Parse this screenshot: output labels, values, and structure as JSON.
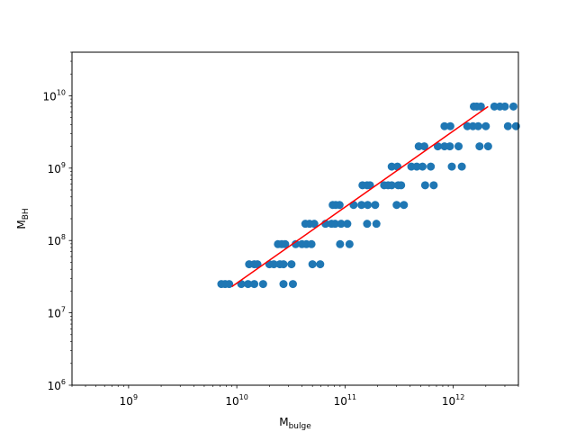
{
  "chart_data": {
    "type": "scatter",
    "title": "",
    "xlabel": {
      "base": "M",
      "sub": "bulge"
    },
    "ylabel": {
      "base": "M",
      "sub": "BH"
    },
    "xscale": "log",
    "yscale": "log",
    "xlim": [
      300000000,
      4000000000000
    ],
    "ylim": [
      1000000,
      40000000000
    ],
    "grid": false,
    "xticks": [
      {
        "base": "10",
        "exp": "9",
        "value": 1000000000.0
      },
      {
        "base": "10",
        "exp": "10",
        "value": 10000000000.0
      },
      {
        "base": "10",
        "exp": "11",
        "value": 100000000000.0
      },
      {
        "base": "10",
        "exp": "12",
        "value": 1000000000000.0
      }
    ],
    "yticks": [
      {
        "base": "10",
        "exp": "6",
        "value": 1000000.0
      },
      {
        "base": "10",
        "exp": "7",
        "value": 10000000.0
      },
      {
        "base": "10",
        "exp": "8",
        "value": 100000000.0
      },
      {
        "base": "10",
        "exp": "9",
        "value": 1000000000.0
      },
      {
        "base": "10",
        "exp": "10",
        "value": 10000000000.0
      }
    ],
    "colors": {
      "points": "#1f77b4",
      "fit": "#ff0000"
    },
    "series": [
      {
        "type": "scatter",
        "points": [
          [
            7200000000.0,
            25000000.0
          ],
          [
            7800000000.0,
            25000000.0
          ],
          [
            8500000000.0,
            25000000.0
          ],
          [
            11000000000.0,
            25000000.0
          ],
          [
            12700000000.0,
            25000000.0
          ],
          [
            14500000000.0,
            25000000.0
          ],
          [
            17500000000.0,
            25000000.0
          ],
          [
            27000000000.0,
            25000000.0
          ],
          [
            33000000000.0,
            25000000.0
          ],
          [
            13000000000.0,
            47000000.0
          ],
          [
            14500000000.0,
            47000000.0
          ],
          [
            15500000000.0,
            47000000.0
          ],
          [
            20000000000.0,
            47000000.0
          ],
          [
            22000000000.0,
            47000000.0
          ],
          [
            25000000000.0,
            47000000.0
          ],
          [
            27000000000.0,
            47000000.0
          ],
          [
            32000000000.0,
            47000000.0
          ],
          [
            50000000000.0,
            47000000.0
          ],
          [
            59000000000.0,
            47000000.0
          ],
          [
            24000000000.0,
            89000000.0
          ],
          [
            26000000000.0,
            89000000.0
          ],
          [
            28000000000.0,
            89000000.0
          ],
          [
            35000000000.0,
            89000000.0
          ],
          [
            40000000000.0,
            89000000.0
          ],
          [
            44000000000.0,
            89000000.0
          ],
          [
            49000000000.0,
            89000000.0
          ],
          [
            90000000000.0,
            89000000.0
          ],
          [
            110000000000.0,
            89000000.0
          ],
          [
            43000000000.0,
            170000000.0
          ],
          [
            47000000000.0,
            170000000.0
          ],
          [
            52000000000.0,
            170000000.0
          ],
          [
            66000000000.0,
            170000000.0
          ],
          [
            75000000000.0,
            170000000.0
          ],
          [
            81000000000.0,
            170000000.0
          ],
          [
            92000000000.0,
            170000000.0
          ],
          [
            105000000000.0,
            170000000.0
          ],
          [
            160000000000.0,
            170000000.0
          ],
          [
            195000000000.0,
            170000000.0
          ],
          [
            77000000000.0,
            310000000.0
          ],
          [
            82000000000.0,
            310000000.0
          ],
          [
            89000000000.0,
            310000000.0
          ],
          [
            120000000000.0,
            310000000.0
          ],
          [
            142000000000.0,
            310000000.0
          ],
          [
            162000000000.0,
            310000000.0
          ],
          [
            190000000000.0,
            310000000.0
          ],
          [
            300000000000.0,
            310000000.0
          ],
          [
            350000000000.0,
            310000000.0
          ],
          [
            145000000000.0,
            580000000.0
          ],
          [
            160000000000.0,
            580000000.0
          ],
          [
            170000000000.0,
            580000000.0
          ],
          [
            230000000000.0,
            580000000.0
          ],
          [
            250000000000.0,
            580000000.0
          ],
          [
            270000000000.0,
            580000000.0
          ],
          [
            310000000000.0,
            580000000.0
          ],
          [
            330000000000.0,
            580000000.0
          ],
          [
            550000000000.0,
            580000000.0
          ],
          [
            660000000000.0,
            580000000.0
          ],
          [
            270000000000.0,
            1050000000.0
          ],
          [
            305000000000.0,
            1050000000.0
          ],
          [
            410000000000.0,
            1050000000.0
          ],
          [
            460000000000.0,
            1050000000.0
          ],
          [
            520000000000.0,
            1050000000.0
          ],
          [
            620000000000.0,
            1050000000.0
          ],
          [
            970000000000.0,
            1050000000.0
          ],
          [
            1200000000000.0,
            1050000000.0
          ],
          [
            480000000000.0,
            2000000000.0
          ],
          [
            540000000000.0,
            2000000000.0
          ],
          [
            720000000000.0,
            2000000000.0
          ],
          [
            830000000000.0,
            2000000000.0
          ],
          [
            930000000000.0,
            2000000000.0
          ],
          [
            1120000000000.0,
            2000000000.0
          ],
          [
            1750000000000.0,
            2000000000.0
          ],
          [
            2100000000000.0,
            2000000000.0
          ],
          [
            830000000000.0,
            3800000000.0
          ],
          [
            940000000000.0,
            3800000000.0
          ],
          [
            1350000000000.0,
            3800000000.0
          ],
          [
            1520000000000.0,
            3800000000.0
          ],
          [
            1700000000000.0,
            3800000000.0
          ],
          [
            2000000000000.0,
            3800000000.0
          ],
          [
            3200000000000.0,
            3800000000.0
          ],
          [
            3800000000000.0,
            3800000000.0
          ],
          [
            1550000000000.0,
            7100000000.0
          ],
          [
            1650000000000.0,
            7100000000.0
          ],
          [
            1800000000000.0,
            7100000000.0
          ],
          [
            2400000000000.0,
            7100000000.0
          ],
          [
            2700000000000.0,
            7100000000.0
          ],
          [
            3000000000000.0,
            7100000000.0
          ],
          [
            3600000000000.0,
            7100000000.0
          ]
        ]
      },
      {
        "type": "line",
        "points": [
          [
            9000000000.0,
            23000000.0
          ],
          [
            2100000000000.0,
            7100000000.0
          ]
        ]
      }
    ]
  }
}
